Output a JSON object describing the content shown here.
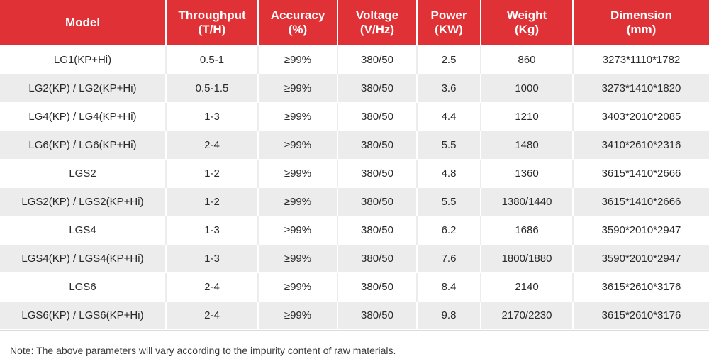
{
  "table": {
    "headers": [
      {
        "line1": "Model",
        "line2": ""
      },
      {
        "line1": "Throughput",
        "line2": "(T/H)"
      },
      {
        "line1": "Accuracy",
        "line2": "(%)"
      },
      {
        "line1": "Voltage",
        "line2": "(V/Hz)"
      },
      {
        "line1": "Power",
        "line2": "(KW)"
      },
      {
        "line1": "Weight",
        "line2": "(Kg)"
      },
      {
        "line1": "Dimension",
        "line2": "(mm)"
      }
    ],
    "rows": [
      [
        "LG1(KP+Hi)",
        "0.5-1",
        "≥99%",
        "380/50",
        "2.5",
        "860",
        "3273*1110*1782"
      ],
      [
        "LG2(KP) / LG2(KP+Hi)",
        "0.5-1.5",
        "≥99%",
        "380/50",
        "3.6",
        "1000",
        "3273*1410*1820"
      ],
      [
        "LG4(KP) / LG4(KP+Hi)",
        "1-3",
        "≥99%",
        "380/50",
        "4.4",
        "1210",
        "3403*2010*2085"
      ],
      [
        "LG6(KP) / LG6(KP+Hi)",
        "2-4",
        "≥99%",
        "380/50",
        "5.5",
        "1480",
        "3410*2610*2316"
      ],
      [
        "LGS2",
        "1-2",
        "≥99%",
        "380/50",
        "4.8",
        "1360",
        "3615*1410*2666"
      ],
      [
        "LGS2(KP) / LGS2(KP+Hi)",
        "1-2",
        "≥99%",
        "380/50",
        "5.5",
        "1380/1440",
        "3615*1410*2666"
      ],
      [
        "LGS4",
        "1-3",
        "≥99%",
        "380/50",
        "6.2",
        "1686",
        "3590*2010*2947"
      ],
      [
        "LGS4(KP) / LGS4(KP+Hi)",
        "1-3",
        "≥99%",
        "380/50",
        "7.6",
        "1800/1880",
        "3590*2010*2947"
      ],
      [
        "LGS6",
        "2-4",
        "≥99%",
        "380/50",
        "8.4",
        "2140",
        "3615*2610*3176"
      ],
      [
        "LGS6(KP) / LGS6(KP+Hi)",
        "2-4",
        "≥99%",
        "380/50",
        "9.8",
        "2170/2230",
        "3615*2610*3176"
      ]
    ]
  },
  "note": "Note: The above parameters will vary according to the impurity content of raw materials.",
  "colors": {
    "header_bg": "#e03236",
    "stripe_bg": "#ececec"
  }
}
